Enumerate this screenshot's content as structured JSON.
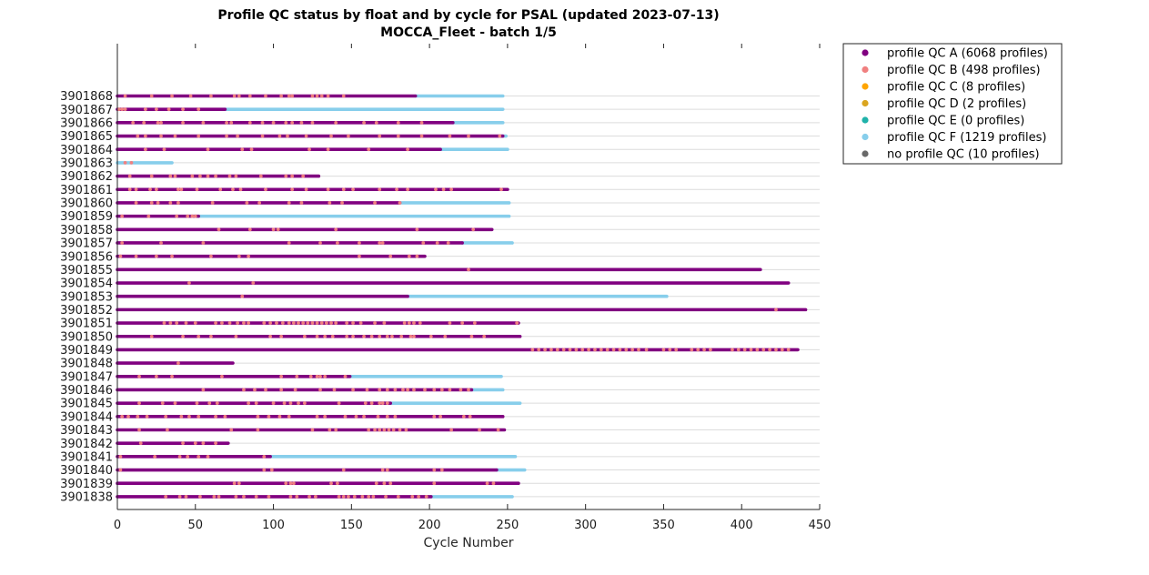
{
  "chart_data": {
    "type": "scatter",
    "title": "Profile QC status by float and by cycle for PSAL (updated 2023-07-13)",
    "subtitle": "MOCCA_Fleet - batch 1/5",
    "xlabel": "Cycle Number",
    "ylabel": "",
    "xlim": [
      0,
      450
    ],
    "xticks": [
      "0",
      "50",
      "100",
      "150",
      "200",
      "250",
      "300",
      "350",
      "400",
      "450"
    ],
    "grid": true,
    "legend_position": "outside-top-right",
    "legend": [
      {
        "label": "profile QC A (6068 profiles)",
        "color": "#800080"
      },
      {
        "label": "profile QC B (498 profiles)",
        "color": "#F08080"
      },
      {
        "label": "profile QC C (8 profiles)",
        "color": "#FFA500"
      },
      {
        "label": "profile QC D (2 profiles)",
        "color": "#DAA520"
      },
      {
        "label": "profile QC E (0 profiles)",
        "color": "#20B2AA"
      },
      {
        "label": "profile QC F (1219 profiles)",
        "color": "#87CEEB"
      },
      {
        "label": "no profile QC (10 profiles)",
        "color": "#696969"
      }
    ],
    "floats": [
      {
        "id": "3901868",
        "a_end": 191,
        "f_end": 247,
        "b": [
          5,
          22,
          35,
          47,
          60,
          75,
          78,
          85,
          95,
          105,
          110,
          112,
          125,
          128,
          131,
          135,
          145
        ]
      },
      {
        "id": "3901867",
        "a_end": 69,
        "f_end": 247,
        "b": [
          1,
          3,
          5,
          18,
          25,
          33,
          42,
          52
        ]
      },
      {
        "id": "3901866",
        "a_end": 215,
        "f_end": 247,
        "b": [
          10,
          17,
          26,
          28,
          42,
          55,
          70,
          73,
          85,
          93,
          100,
          108,
          112,
          118,
          125,
          140,
          158,
          166,
          180,
          195
        ]
      },
      {
        "id": "3901865",
        "a_end": 247,
        "f_end": 249,
        "b": [
          13,
          18,
          28,
          37,
          52,
          70,
          77,
          93,
          104,
          109,
          121,
          137,
          148,
          168,
          180,
          195,
          213,
          225,
          245
        ]
      },
      {
        "id": "3901864",
        "a_end": 207,
        "f_end": 250,
        "b": [
          18,
          30,
          58,
          80,
          86,
          123,
          135,
          161,
          186
        ]
      },
      {
        "id": "3901863",
        "a_end": 0,
        "f_end": 35,
        "b": [
          5,
          9
        ]
      },
      {
        "id": "3901862",
        "a_end": 129,
        "f_end": 129,
        "b": [
          8,
          22,
          34,
          37,
          48,
          53,
          58,
          63,
          72,
          76,
          92,
          108,
          112,
          119
        ]
      },
      {
        "id": "3901861",
        "a_end": 250,
        "f_end": 250,
        "b": [
          8,
          12,
          21,
          25,
          39,
          41,
          51,
          66,
          74,
          79,
          95,
          112,
          121,
          135,
          145,
          151,
          168,
          179,
          186,
          204,
          209,
          214,
          246
        ]
      },
      {
        "id": "3901860",
        "a_end": 181,
        "f_end": 251,
        "b": [
          12,
          22,
          26,
          34,
          39,
          61,
          83,
          91,
          110,
          118,
          136,
          144,
          165,
          181
        ]
      },
      {
        "id": "3901859",
        "a_end": 52,
        "f_end": 251,
        "b": [
          3,
          20,
          38,
          45,
          48,
          50
        ]
      },
      {
        "id": "3901858",
        "a_end": 240,
        "f_end": 240,
        "b": [
          65,
          85,
          100,
          103,
          140,
          192,
          228
        ]
      },
      {
        "id": "3901857",
        "a_end": 221,
        "f_end": 253,
        "b": [
          3,
          28,
          55,
          110,
          130,
          141,
          155,
          168,
          170,
          196,
          205,
          212
        ]
      },
      {
        "id": "3901856",
        "a_end": 197,
        "f_end": 197,
        "b": [
          2,
          12,
          25,
          35,
          60,
          78,
          84,
          155,
          175,
          187,
          192
        ]
      },
      {
        "id": "3901855",
        "a_end": 412,
        "f_end": 412,
        "b": [
          225
        ]
      },
      {
        "id": "3901854",
        "a_end": 430,
        "f_end": 430,
        "b": [
          46,
          87
        ]
      },
      {
        "id": "3901853",
        "a_end": 186,
        "f_end": 352,
        "b": [
          80
        ]
      },
      {
        "id": "3901852",
        "a_end": 441,
        "f_end": 441,
        "b": [
          422
        ]
      },
      {
        "id": "3901851",
        "a_end": 257,
        "f_end": 257,
        "b": [
          30,
          34,
          38,
          44,
          50,
          63,
          67,
          72,
          77,
          81,
          84,
          94,
          98,
          102,
          106,
          110,
          113,
          116,
          119,
          122,
          125,
          128,
          131,
          134,
          137,
          140,
          147,
          151,
          156,
          165,
          171,
          184,
          187,
          190,
          194,
          213,
          221,
          229,
          256
        ]
      },
      {
        "id": "3901850",
        "a_end": 258,
        "f_end": 258,
        "b": [
          22,
          42,
          52,
          60,
          76,
          98,
          105,
          120,
          128,
          133,
          138,
          147,
          151,
          158,
          163,
          168,
          173,
          176,
          182,
          188,
          190,
          201,
          210,
          227,
          235
        ]
      },
      {
        "id": "3901849",
        "a_end": 436,
        "f_end": 436,
        "b": [
          266,
          270,
          274,
          278,
          282,
          286,
          290,
          294,
          298,
          302,
          306,
          310,
          314,
          318,
          322,
          326,
          330,
          334,
          339,
          350,
          354,
          358,
          368,
          372,
          376,
          380,
          394,
          398,
          402,
          406,
          410,
          414,
          418,
          422,
          426,
          430
        ]
      },
      {
        "id": "3901848",
        "a_end": 74,
        "f_end": 74,
        "b": [
          39
        ]
      },
      {
        "id": "3901847",
        "a_end": 149,
        "f_end": 246,
        "b": [
          14,
          25,
          35,
          67,
          105,
          115,
          124,
          128,
          130,
          133,
          146
        ]
      },
      {
        "id": "3901846",
        "a_end": 227,
        "f_end": 247,
        "b": [
          55,
          81,
          88,
          95,
          105,
          114,
          130,
          139,
          151,
          160,
          168,
          173,
          178,
          183,
          186,
          190,
          197,
          203,
          208,
          213,
          220,
          225
        ]
      },
      {
        "id": "3901845",
        "a_end": 175,
        "f_end": 258,
        "b": [
          14,
          29,
          37,
          51,
          59,
          64,
          84,
          89,
          100,
          107,
          111,
          116,
          120,
          142,
          159,
          163,
          168,
          170,
          173
        ]
      },
      {
        "id": "3901844",
        "a_end": 247,
        "f_end": 247,
        "b": [
          3,
          7,
          13,
          19,
          31,
          41,
          46,
          52,
          63,
          69,
          90,
          97,
          104,
          110,
          128,
          133,
          146,
          153,
          158,
          167,
          173,
          178,
          203,
          207,
          222,
          226
        ]
      },
      {
        "id": "3901843",
        "a_end": 248,
        "f_end": 248,
        "b": [
          14,
          32,
          73,
          90,
          125,
          136,
          140,
          161,
          165,
          168,
          171,
          174,
          177,
          181,
          185,
          214,
          232,
          244
        ]
      },
      {
        "id": "3901842",
        "a_end": 71,
        "f_end": 71,
        "b": [
          15,
          42,
          50,
          55,
          63
        ]
      },
      {
        "id": "3901841",
        "a_end": 98,
        "f_end": 255,
        "b": [
          2,
          24,
          40,
          45,
          52,
          58,
          94
        ]
      },
      {
        "id": "3901840",
        "a_end": 243,
        "f_end": 261,
        "b": [
          2,
          94,
          99,
          145,
          170,
          173,
          203,
          208
        ]
      },
      {
        "id": "3901839",
        "a_end": 257,
        "f_end": 257,
        "b": [
          75,
          78,
          108,
          111,
          113,
          137,
          141,
          166,
          171,
          175,
          203,
          237,
          241
        ]
      },
      {
        "id": "3901838",
        "a_end": 201,
        "f_end": 253,
        "b": [
          31,
          40,
          44,
          53,
          62,
          65,
          76,
          81,
          89,
          97,
          111,
          115,
          123,
          127,
          142,
          145,
          148,
          152,
          157,
          161,
          164,
          172,
          180,
          189,
          193,
          198
        ]
      }
    ]
  }
}
